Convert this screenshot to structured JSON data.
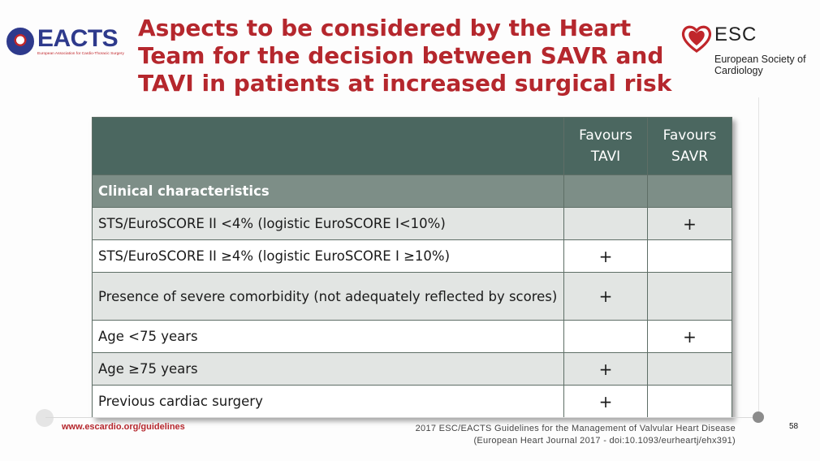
{
  "header": {
    "title": "Aspects to be considered by the Heart Team for the decision between SAVR and TAVI in patients at increased surgical risk"
  },
  "logos": {
    "eacts": {
      "word": "EACTS",
      "subtitle": "European Association for Cardio-Thoracic Surgery"
    },
    "esc": {
      "word": "ESC",
      "name": "European Society of Cardiology",
      "brand_color": "#c0262b"
    }
  },
  "table": {
    "columns": [
      "",
      "Favours TAVI",
      "Favours SAVR"
    ],
    "section": "Clinical characteristics",
    "rows": [
      {
        "label": "STS/EuroSCORE II <4% (logistic EuroSCORE I<10%)",
        "tavi": "",
        "savr": "+"
      },
      {
        "label": "STS/EuroSCORE II ≥4% (logistic EuroSCORE I ≥10%)",
        "tavi": "+",
        "savr": ""
      },
      {
        "label": "Presence of severe comorbidity (not adequately reflected by scores)",
        "tavi": "+",
        "savr": ""
      },
      {
        "label": "Age <75 years",
        "tavi": "",
        "savr": "+"
      },
      {
        "label": "Age ≥75 years",
        "tavi": "+",
        "savr": ""
      },
      {
        "label": "Previous cardiac surgery",
        "tavi": "+",
        "savr": ""
      }
    ]
  },
  "footer": {
    "url": "www.escardio.org/guidelines",
    "citation_line1": "2017 ESC/EACTS Guidelines for the Management of Valvular Heart Disease",
    "citation_line2": "(European Heart Journal 2017 - doi:10.1093/eurheartj/ehx391)",
    "page_number": "58"
  },
  "colors": {
    "title_red": "#b5272d",
    "header_green": "#4b6760",
    "section_green": "#7d8e87",
    "row_alt": "#e2e5e3"
  }
}
